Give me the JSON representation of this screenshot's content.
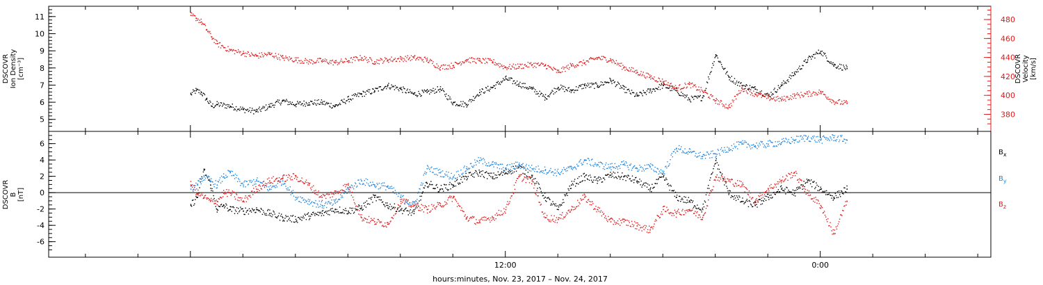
{
  "chart_data": [
    {
      "type": "scatter",
      "panel": "top",
      "left_axis_label": [
        "DSCOVR",
        "Ion Density",
        "[cm⁻³]"
      ],
      "right_axis_label": [
        "DSCOVR",
        "Velocity",
        "[km/s]"
      ],
      "left_ylim": [
        4.3,
        11.6
      ],
      "left_ticks": [
        5,
        6,
        7,
        8,
        9,
        10,
        11
      ],
      "right_ylim": [
        362,
        494
      ],
      "right_ticks": [
        380,
        400,
        420,
        440,
        460,
        480
      ],
      "colors": {
        "density": "#000000",
        "velocity": "#e0191a"
      },
      "series": [
        {
          "name": "density",
          "axis": "left",
          "x": [
            0.0,
            0.2,
            0.4,
            0.6,
            0.8,
            1.0,
            1.5,
            2.0,
            2.5,
            3.0,
            3.5,
            4.0,
            4.5,
            5.0,
            5.5,
            6.0,
            6.5,
            7.0,
            7.5,
            8.0,
            8.5,
            9.0,
            9.5,
            10.0,
            10.5,
            11.0,
            11.5,
            12.0,
            12.5,
            13.0,
            13.5,
            14.0,
            14.5,
            15.0,
            15.5,
            16.0,
            16.5,
            17.0,
            17.5,
            18.0,
            18.5,
            19.0,
            19.5,
            20.0,
            20.5,
            21.0,
            21.5,
            22.0,
            22.5,
            23.0,
            23.5,
            24.0,
            24.5,
            25.0
          ],
          "y": [
            6.5,
            6.7,
            6.6,
            6.2,
            5.8,
            5.9,
            5.8,
            5.6,
            5.5,
            5.8,
            6.1,
            5.9,
            6.0,
            6.0,
            5.8,
            6.2,
            6.5,
            6.7,
            7.0,
            6.8,
            6.5,
            6.6,
            6.8,
            6.0,
            5.9,
            6.6,
            6.9,
            7.4,
            7.1,
            6.8,
            6.3,
            6.9,
            6.7,
            7.0,
            7.0,
            7.3,
            6.8,
            6.4,
            6.7,
            7.0,
            6.7,
            6.2,
            6.3,
            8.8,
            7.5,
            7.0,
            6.8,
            6.4,
            7.0,
            7.7,
            8.5,
            9.0,
            8.2,
            8.0
          ]
        },
        {
          "name": "velocity",
          "axis": "right",
          "x": [
            0.0,
            0.2,
            0.4,
            0.6,
            0.8,
            1.0,
            1.5,
            2.0,
            2.5,
            3.0,
            3.5,
            4.0,
            4.5,
            5.0,
            5.5,
            6.0,
            6.5,
            7.0,
            7.5,
            8.0,
            8.5,
            9.0,
            9.5,
            10.0,
            10.5,
            11.0,
            11.5,
            12.0,
            12.5,
            13.0,
            13.5,
            14.0,
            14.5,
            15.0,
            15.5,
            16.0,
            16.5,
            17.0,
            17.5,
            18.0,
            18.5,
            19.0,
            19.5,
            20.0,
            20.5,
            21.0,
            21.5,
            22.0,
            22.5,
            23.0,
            23.5,
            24.0,
            24.5,
            25.0
          ],
          "y": [
            485,
            482,
            478,
            470,
            462,
            455,
            448,
            445,
            442,
            444,
            440,
            438,
            436,
            437,
            435,
            437,
            440,
            436,
            438,
            439,
            440,
            438,
            430,
            432,
            438,
            437,
            436,
            430,
            431,
            433,
            432,
            425,
            432,
            435,
            440,
            438,
            430,
            425,
            420,
            415,
            408,
            412,
            405,
            395,
            388,
            408,
            402,
            398,
            396,
            400,
            402,
            404,
            394,
            392
          ]
        }
      ]
    },
    {
      "type": "scatter",
      "panel": "bottom",
      "left_axis_label": [
        "DSCOVR",
        "B",
        "[nT]"
      ],
      "ylim": [
        -7.9,
        7.5
      ],
      "ticks": [
        -6,
        -4,
        -2,
        0,
        2,
        4,
        6
      ],
      "zero_line": true,
      "legend_labels": {
        "bx": "B",
        "by": "B",
        "bz": "B"
      },
      "legend_subscripts": {
        "bx": "x",
        "by": "y",
        "bz": "z"
      },
      "colors": {
        "bx": "#000000",
        "by": "#1f86e0",
        "bz": "#e0191a"
      },
      "series": [
        {
          "name": "bx",
          "x": [
            0.0,
            0.25,
            0.5,
            0.75,
            1.0,
            1.25,
            1.5,
            2.0,
            2.5,
            3.0,
            3.5,
            4.0,
            4.5,
            5.0,
            5.5,
            6.0,
            6.5,
            7.0,
            7.5,
            8.0,
            8.5,
            9.0,
            9.5,
            10.0,
            10.5,
            11.0,
            11.5,
            12.0,
            12.5,
            13.0,
            13.5,
            14.0,
            14.5,
            15.0,
            15.5,
            16.0,
            16.5,
            17.0,
            17.5,
            18.0,
            18.5,
            19.0,
            19.5,
            20.0,
            20.5,
            21.0,
            21.5,
            22.0,
            22.5,
            23.0,
            23.5,
            24.0,
            24.5,
            25.0
          ],
          "y": [
            -1.5,
            -0.5,
            2.8,
            1.0,
            -2.0,
            -1.5,
            -2.0,
            -2.2,
            -2.0,
            -2.5,
            -3.0,
            -3.2,
            -2.8,
            -2.5,
            -2.0,
            -2.2,
            -1.8,
            -0.5,
            -1.5,
            -2.0,
            -2.5,
            1.2,
            0.5,
            1.0,
            2.0,
            2.5,
            2.0,
            2.5,
            3.2,
            2.0,
            -0.5,
            -2.0,
            1.0,
            2.0,
            1.5,
            2.2,
            2.0,
            1.5,
            0.5,
            2.0,
            -0.5,
            -1.0,
            -2.0,
            4.0,
            0.0,
            -1.0,
            -1.5,
            -0.5,
            0.5,
            0.0,
            1.5,
            0.5,
            -0.5,
            0.5
          ]
        },
        {
          "name": "by",
          "x": [
            0.0,
            0.25,
            0.5,
            0.75,
            1.0,
            1.25,
            1.5,
            2.0,
            2.5,
            3.0,
            3.5,
            4.0,
            4.5,
            5.0,
            5.5,
            6.0,
            6.5,
            7.0,
            7.5,
            8.0,
            8.5,
            9.0,
            9.5,
            10.0,
            10.5,
            11.0,
            11.5,
            12.0,
            12.5,
            13.0,
            13.5,
            14.0,
            14.5,
            15.0,
            15.5,
            16.0,
            16.5,
            17.0,
            17.5,
            18.0,
            18.5,
            19.0,
            19.5,
            20.0,
            20.5,
            21.0,
            21.5,
            22.0,
            22.5,
            23.0,
            23.5,
            24.0,
            24.5,
            25.0
          ],
          "y": [
            0.5,
            1.0,
            2.0,
            1.5,
            1.0,
            2.0,
            2.5,
            1.0,
            1.5,
            0.5,
            1.5,
            -0.5,
            -1.0,
            -1.5,
            -1.2,
            0.5,
            1.5,
            1.0,
            0.8,
            -0.5,
            -1.5,
            3.0,
            2.5,
            2.0,
            3.0,
            4.0,
            3.5,
            3.0,
            3.5,
            3.0,
            2.8,
            2.5,
            3.0,
            4.0,
            3.5,
            3.2,
            3.5,
            3.0,
            3.2,
            2.5,
            5.5,
            5.0,
            4.5,
            4.8,
            5.5,
            6.0,
            5.8,
            6.0,
            6.2,
            6.5,
            6.8,
            6.5,
            6.8,
            6.5
          ]
        },
        {
          "name": "bz",
          "x": [
            0.0,
            0.25,
            0.5,
            0.75,
            1.0,
            1.25,
            1.5,
            2.0,
            2.5,
            3.0,
            3.5,
            4.0,
            4.5,
            5.0,
            5.5,
            6.0,
            6.5,
            7.0,
            7.5,
            8.0,
            8.5,
            9.0,
            9.5,
            10.0,
            10.5,
            11.0,
            11.5,
            12.0,
            12.5,
            13.0,
            13.5,
            14.0,
            14.5,
            15.0,
            15.5,
            16.0,
            16.5,
            17.0,
            17.5,
            18.0,
            18.5,
            19.0,
            19.5,
            20.0,
            20.5,
            21.0,
            21.5,
            22.0,
            22.5,
            23.0,
            23.5,
            24.0,
            24.5,
            25.0
          ],
          "y": [
            1.0,
            0.0,
            -0.5,
            -1.0,
            -1.0,
            0.0,
            0.0,
            -1.0,
            0.5,
            1.5,
            1.8,
            2.0,
            1.0,
            -0.5,
            0.0,
            1.0,
            -3.0,
            -3.5,
            -3.8,
            -1.0,
            -1.5,
            -2.0,
            -1.5,
            -0.5,
            -3.0,
            -3.5,
            -3.0,
            -2.0,
            2.0,
            1.5,
            -3.0,
            -3.2,
            -2.0,
            -0.5,
            -2.0,
            -3.5,
            -3.5,
            -4.0,
            -4.5,
            -2.0,
            -2.5,
            -2.0,
            -3.0,
            2.0,
            1.5,
            1.0,
            -1.0,
            0.5,
            1.5,
            2.5,
            0.0,
            -1.5,
            -5.0,
            -1.0
          ]
        }
      ]
    }
  ],
  "xaxis": {
    "range_hours": [
      -5.4,
      30.5
    ],
    "tick_labels": [
      {
        "hour": 12,
        "label": "12:00"
      },
      {
        "hour": 24,
        "label": "0:00"
      }
    ],
    "title": "hours:minutes, Nov. 23, 2017 – Nov. 24, 2017"
  }
}
